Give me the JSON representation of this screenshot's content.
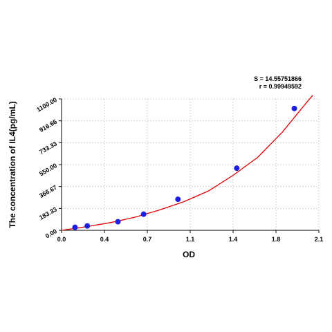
{
  "chart_data": {
    "type": "scatter",
    "title": "",
    "xlabel": "OD",
    "ylabel": "The concentration of IL4(pg/mL)",
    "xlim": [
      0.0,
      2.1
    ],
    "ylim": [
      0.0,
      1100.0
    ],
    "x_ticks": [
      "0.0",
      "0.4",
      "0.7",
      "1.1",
      "1.4",
      "1.8",
      "2.1"
    ],
    "y_ticks": [
      "0.00",
      "183.33",
      "366.67",
      "550.00",
      "733.33",
      "916.66",
      "1100.00"
    ],
    "grid": true,
    "stats": {
      "s": "S = 14.55751866",
      "r": "r = 0.99949592"
    },
    "points": {
      "x": [
        0.11,
        0.21,
        0.46,
        0.67,
        0.95,
        1.43,
        1.9
      ],
      "y": [
        25,
        37,
        72,
        135,
        260,
        520,
        1020
      ]
    },
    "fit_curve": {
      "x": [
        0.0,
        0.2,
        0.4,
        0.6,
        0.8,
        1.0,
        1.2,
        1.4,
        1.6,
        1.8,
        2.0,
        2.05
      ],
      "y": [
        0,
        30,
        65,
        110,
        170,
        240,
        330,
        460,
        610,
        820,
        1070,
        1130
      ]
    },
    "colors": {
      "points": "#1f1fe0",
      "curve": "#e00000",
      "grid": "#c8c8c8"
    }
  }
}
